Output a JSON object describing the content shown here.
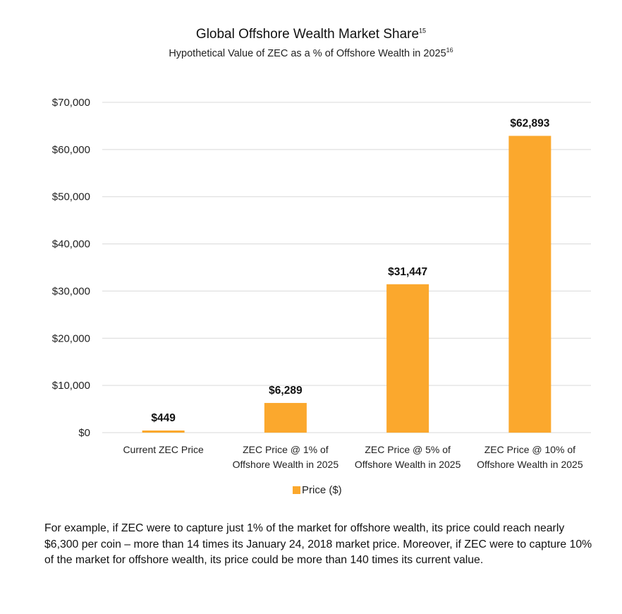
{
  "chart_data": {
    "type": "bar",
    "title": "Global Offshore Wealth Market Share",
    "title_footnote": "15",
    "subtitle": "Hypothetical Value of ZEC as a % of Offshore Wealth in 2025",
    "subtitle_footnote": "16",
    "categories": [
      [
        "Current ZEC Price"
      ],
      [
        "ZEC Price @ 1% of",
        "Offshore Wealth in 2025"
      ],
      [
        "ZEC Price @ 5% of",
        "Offshore Wealth in 2025"
      ],
      [
        "ZEC Price @ 10% of",
        "Offshore Wealth in 2025"
      ]
    ],
    "series": [
      {
        "name": "Price  ($)",
        "values": [
          449,
          6289,
          31447,
          62893
        ]
      }
    ],
    "data_labels": [
      "$449",
      "$6,289",
      "$31,447",
      "$62,893"
    ],
    "ylim": [
      0,
      70000
    ],
    "yticks": [
      0,
      10000,
      20000,
      30000,
      40000,
      50000,
      60000,
      70000
    ],
    "ytick_labels": [
      "$0",
      "$10,000",
      "$20,000",
      "$30,000",
      "$40,000",
      "$50,000",
      "$60,000",
      "$70,000"
    ],
    "grid": true,
    "legend_position": "bottom",
    "bar_color": "#FBA82D",
    "grid_color": "#d9d9d9"
  },
  "note": "For example, if ZEC were to capture just 1% of the market for offshore wealth, its price could reach nearly $6,300 per coin – more than 14 times its January 24, 2018 market price.  Moreover, if ZEC were to capture 10% of the market for offshore wealth, its price could be more than 140 times its current value."
}
